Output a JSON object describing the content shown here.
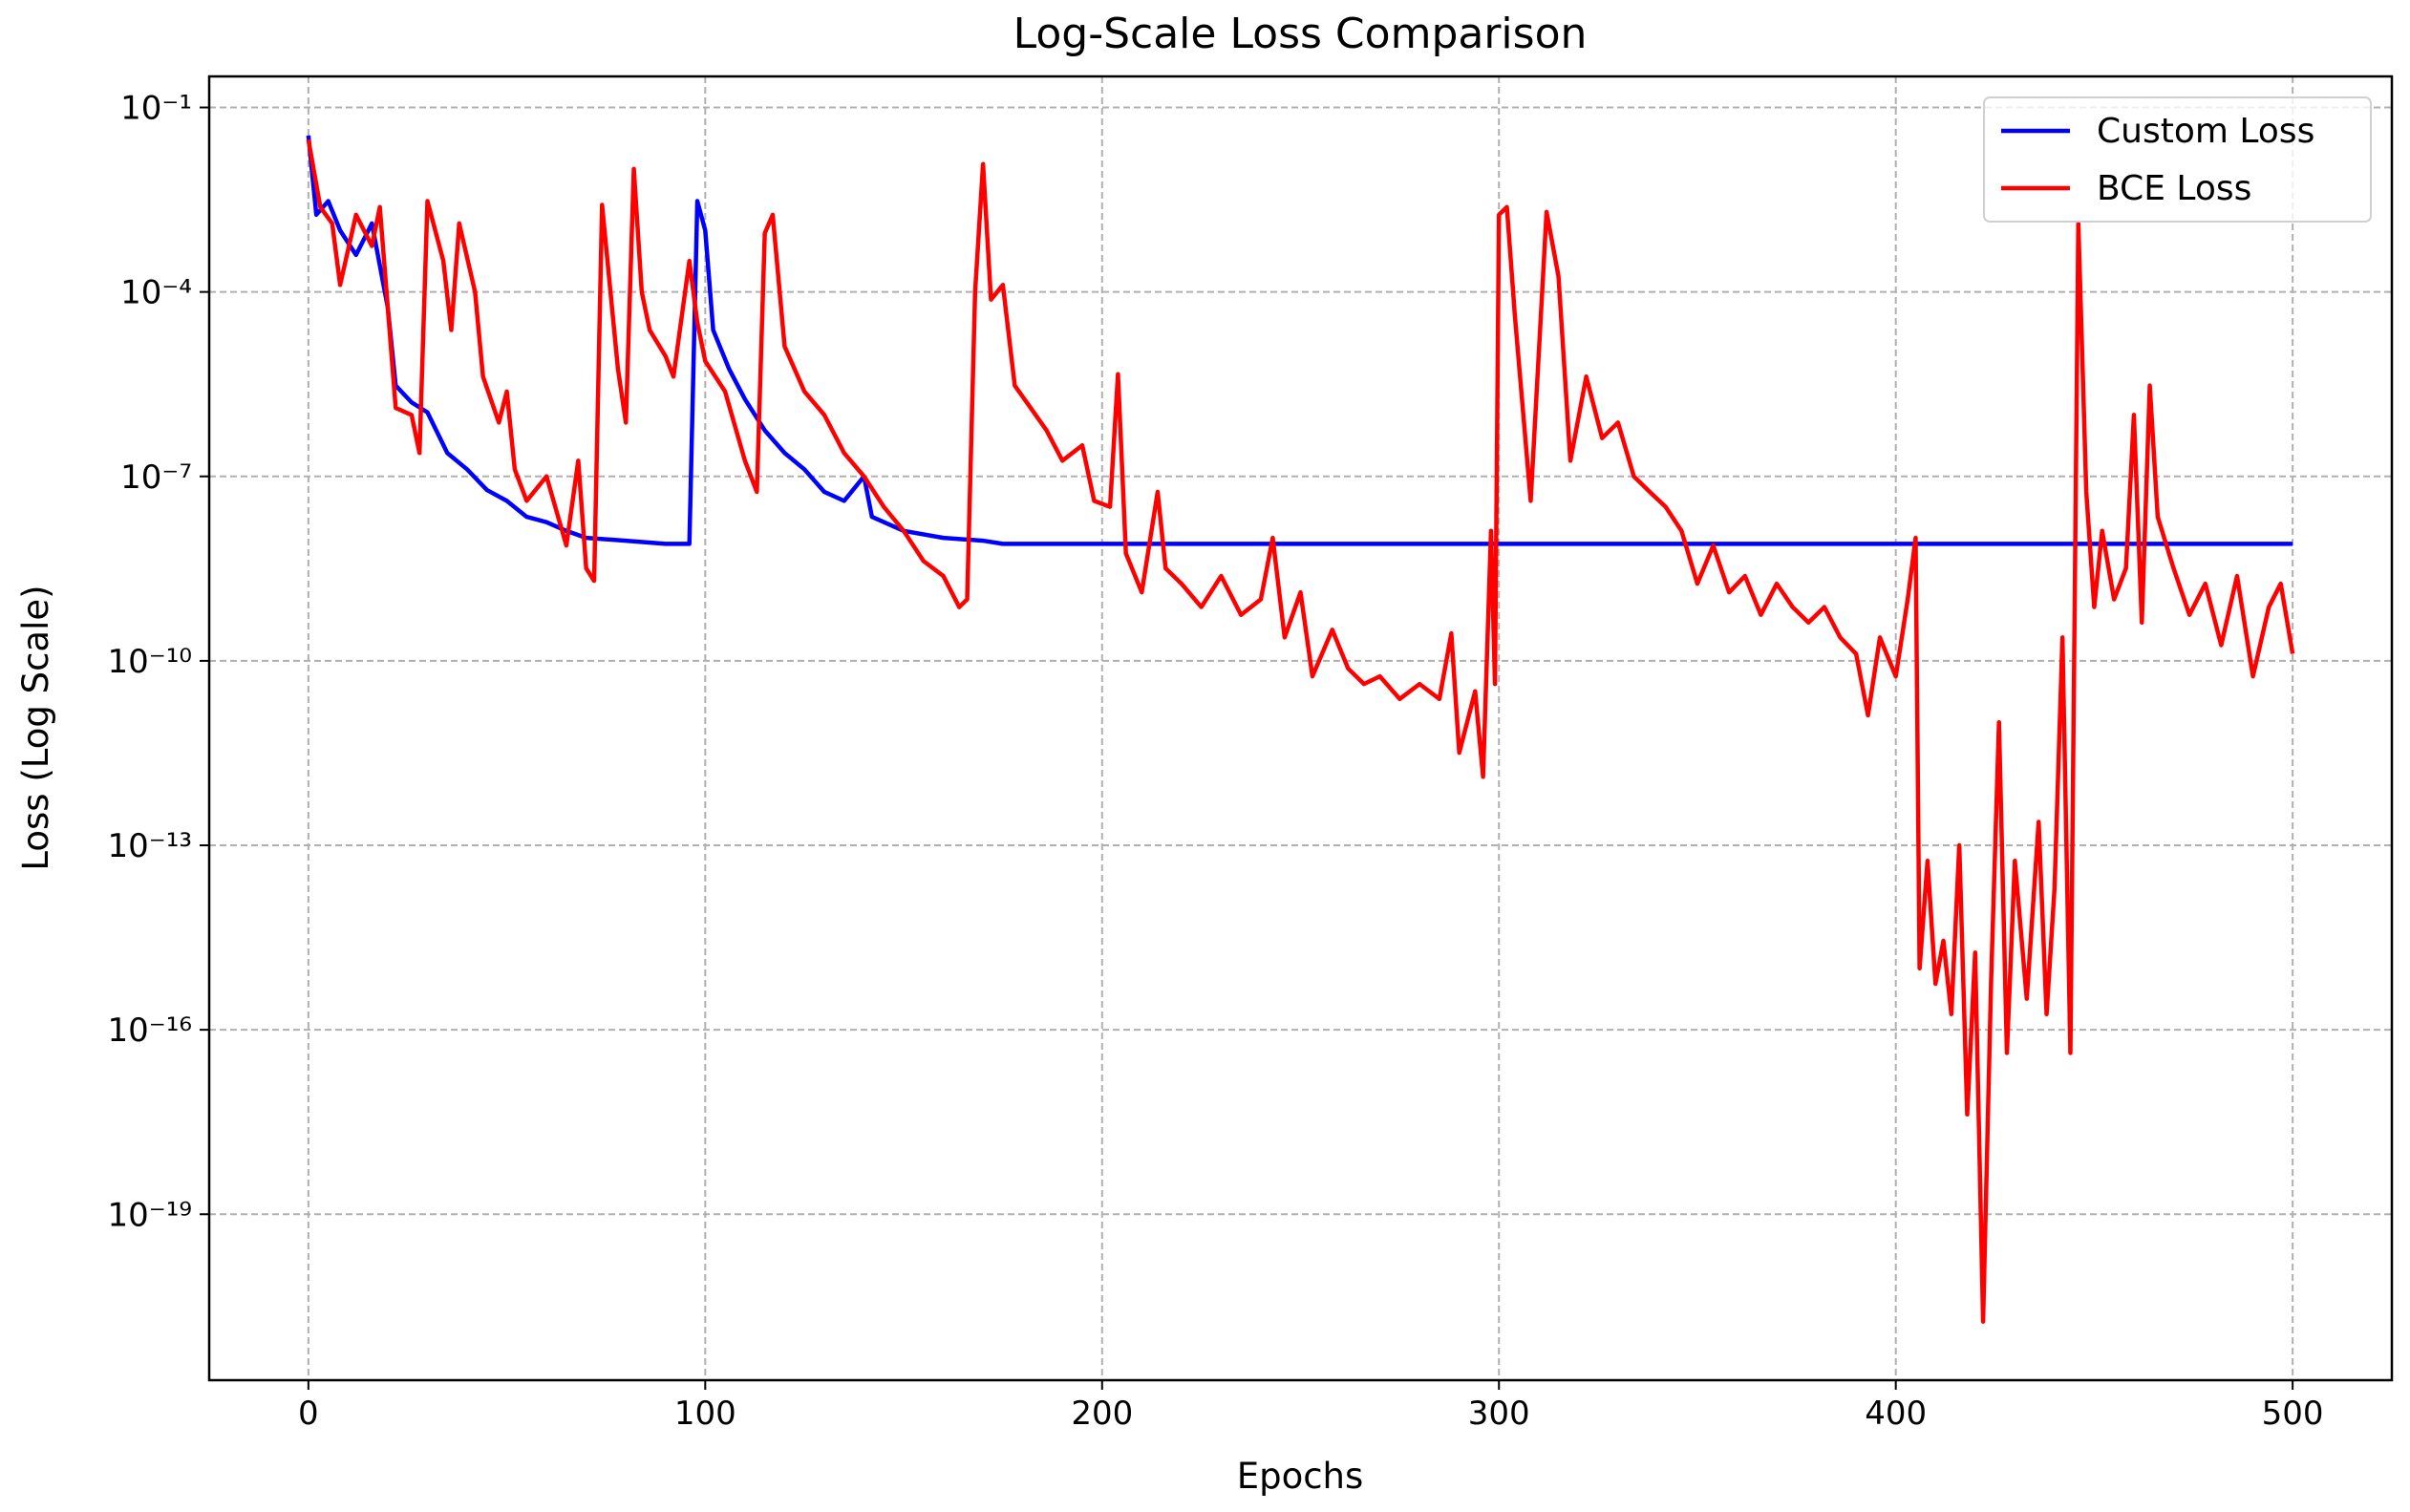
{
  "chart_data": {
    "type": "line",
    "title": "Log-Scale Loss Comparison",
    "x_label": "Epochs",
    "y_label": "Loss (Log Scale)",
    "log_y": true,
    "grid": true,
    "legend": "upper right",
    "xlim": [
      -25,
      525
    ],
    "xticks": [
      0,
      100,
      200,
      300,
      400,
      500
    ],
    "ylim": [
      2e-22,
      0.32
    ],
    "yticks": [
      {
        "value": 0.1,
        "label": "10⁻¹"
      },
      {
        "value": 0.0001,
        "label": "10⁻⁴"
      },
      {
        "value": 1e-07,
        "label": "10⁻⁷"
      },
      {
        "value": 1e-10,
        "label": "10⁻¹⁰"
      },
      {
        "value": 1e-13,
        "label": "10⁻¹³"
      },
      {
        "value": 1e-16,
        "label": "10⁻¹⁶"
      },
      {
        "value": 1e-19,
        "label": "10⁻¹⁹"
      }
    ],
    "series": [
      {
        "name": "Custom Loss",
        "color": "#0000ff",
        "x": [
          0,
          2,
          5,
          8,
          12,
          16,
          20,
          22,
          26,
          30,
          35,
          40,
          45,
          50,
          55,
          60,
          65,
          70,
          80,
          90,
          96,
          98,
          100,
          102,
          106,
          110,
          115,
          120,
          125,
          130,
          135,
          140,
          142,
          150,
          160,
          170,
          175,
          200,
          250,
          300,
          350,
          400,
          450,
          500
        ],
        "values": [
          0.035,
          0.0018,
          0.003,
          0.001,
          0.0004,
          0.0013,
          5.6e-05,
          3e-06,
          1.6e-06,
          1.1e-06,
          2.4e-07,
          1.3e-07,
          6e-08,
          4e-08,
          2.2e-08,
          1.8e-08,
          1.3e-08,
          1e-08,
          9e-09,
          8e-09,
          8e-09,
          0.003,
          0.001,
          2.4e-05,
          5.6e-06,
          1.8e-06,
          5.6e-07,
          2.4e-07,
          1.3e-07,
          5.6e-08,
          4e-08,
          1e-07,
          2.2e-08,
          1.3e-08,
          1e-08,
          9e-09,
          8e-09,
          8e-09,
          8e-09,
          8e-09,
          8e-09,
          8e-09,
          8e-09,
          8e-09
        ]
      },
      {
        "name": "BCE Loss",
        "color": "#ff0000",
        "x": [
          0,
          3,
          6,
          8,
          12,
          16,
          18,
          20,
          22,
          26,
          28,
          30,
          34,
          36,
          38,
          42,
          44,
          48,
          50,
          52,
          55,
          60,
          65,
          68,
          70,
          72,
          74,
          78,
          80,
          82,
          84,
          86,
          90,
          92,
          96,
          98,
          100,
          105,
          110,
          113,
          115,
          117,
          120,
          125,
          130,
          135,
          140,
          145,
          150,
          155,
          160,
          164,
          166,
          168,
          170,
          172,
          175,
          178,
          182,
          186,
          190,
          195,
          198,
          202,
          204,
          206,
          210,
          214,
          216,
          220,
          225,
          230,
          235,
          240,
          243,
          246,
          250,
          253,
          258,
          262,
          266,
          270,
          275,
          280,
          285,
          288,
          290,
          294,
          296,
          298,
          299,
          300,
          302,
          304,
          306,
          308,
          312,
          315,
          318,
          322,
          326,
          330,
          334,
          338,
          342,
          346,
          350,
          354,
          358,
          362,
          366,
          370,
          374,
          378,
          382,
          386,
          390,
          393,
          396,
          400,
          403,
          405,
          406,
          408,
          410,
          412,
          414,
          416,
          418,
          420,
          422,
          424,
          426,
          428,
          430,
          433,
          436,
          438,
          440,
          442,
          444,
          446,
          448,
          450,
          452,
          455,
          458,
          460,
          462,
          464,
          466,
          470,
          474,
          478,
          482,
          486,
          490,
          494,
          497,
          500
        ],
        "values": [
          0.03,
          0.0024,
          0.0013,
          0.00013,
          0.0018,
          0.00056,
          0.0024,
          5.6e-05,
          1.3e-06,
          1e-06,
          2.4e-07,
          0.003,
          0.00032,
          2.4e-05,
          0.0013,
          0.0001,
          4.2e-06,
          7.5e-07,
          2.4e-06,
          1.3e-07,
          4e-08,
          1e-07,
          7.5e-09,
          1.8e-07,
          3.2e-09,
          2e-09,
          0.0026,
          5.6e-06,
          7.5e-07,
          0.01,
          0.0001,
          2.4e-05,
          9e-06,
          4.2e-06,
          0.00032,
          3.2e-05,
          7.5e-06,
          2.4e-06,
          1.8e-07,
          5.6e-08,
          0.0009,
          0.0018,
          1.3e-05,
          2.4e-06,
          1e-06,
          2.4e-07,
          1e-07,
          3.2e-08,
          1.3e-08,
          4.2e-09,
          2.4e-09,
          7.5e-10,
          1e-09,
          0.0001,
          0.012,
          7.5e-05,
          0.00013,
          3e-06,
          1.3e-06,
          5.6e-07,
          1.8e-07,
          3.2e-07,
          4e-08,
          3.2e-08,
          4.6e-06,
          5.6e-09,
          1.3e-09,
          5.6e-08,
          3.2e-09,
          1.8e-09,
          7.5e-10,
          2.4e-09,
          5.6e-10,
          1e-09,
          1e-08,
          2.4e-10,
          1.3e-09,
          5.6e-11,
          3.2e-10,
          7.5e-11,
          4.2e-11,
          5.6e-11,
          2.4e-11,
          4.2e-11,
          2.4e-11,
          2.8e-10,
          3.2e-12,
          3.2e-11,
          1.3e-12,
          1.3e-08,
          4.2e-11,
          0.0018,
          0.0024,
          4.2e-05,
          1.3e-06,
          4e-08,
          0.002,
          0.00018,
          1.8e-07,
          4.2e-06,
          4.2e-07,
          7.5e-07,
          1e-07,
          5.6e-08,
          3.2e-08,
          1.3e-08,
          1.8e-09,
          7.5e-09,
          1.3e-09,
          2.4e-09,
          5.6e-10,
          1.8e-09,
          7.5e-10,
          4.2e-10,
          7.5e-10,
          2.4e-10,
          1.3e-10,
          1.3e-11,
          2.4e-10,
          5.6e-11,
          1e-09,
          1e-08,
          1e-15,
          5.6e-14,
          5.6e-16,
          2.8e-15,
          1.8e-16,
          1e-13,
          4.2e-18,
          1.8e-15,
          1.8e-21,
          5.6e-16,
          1e-11,
          4.2e-17,
          5.6e-14,
          3.2e-16,
          2.4e-13,
          1.8e-16,
          2e-14,
          2.4e-10,
          4.2e-17,
          0.0013,
          5.6e-08,
          7.5e-10,
          1.3e-08,
          1e-09,
          3.2e-09,
          1e-06,
          4.2e-10,
          3e-06,
          2.2e-08,
          3.2e-09,
          5.6e-10,
          1.8e-09,
          1.8e-10,
          2.4e-09,
          5.6e-11,
          7.5e-10,
          1.8e-09,
          1.3e-10
        ]
      }
    ]
  }
}
